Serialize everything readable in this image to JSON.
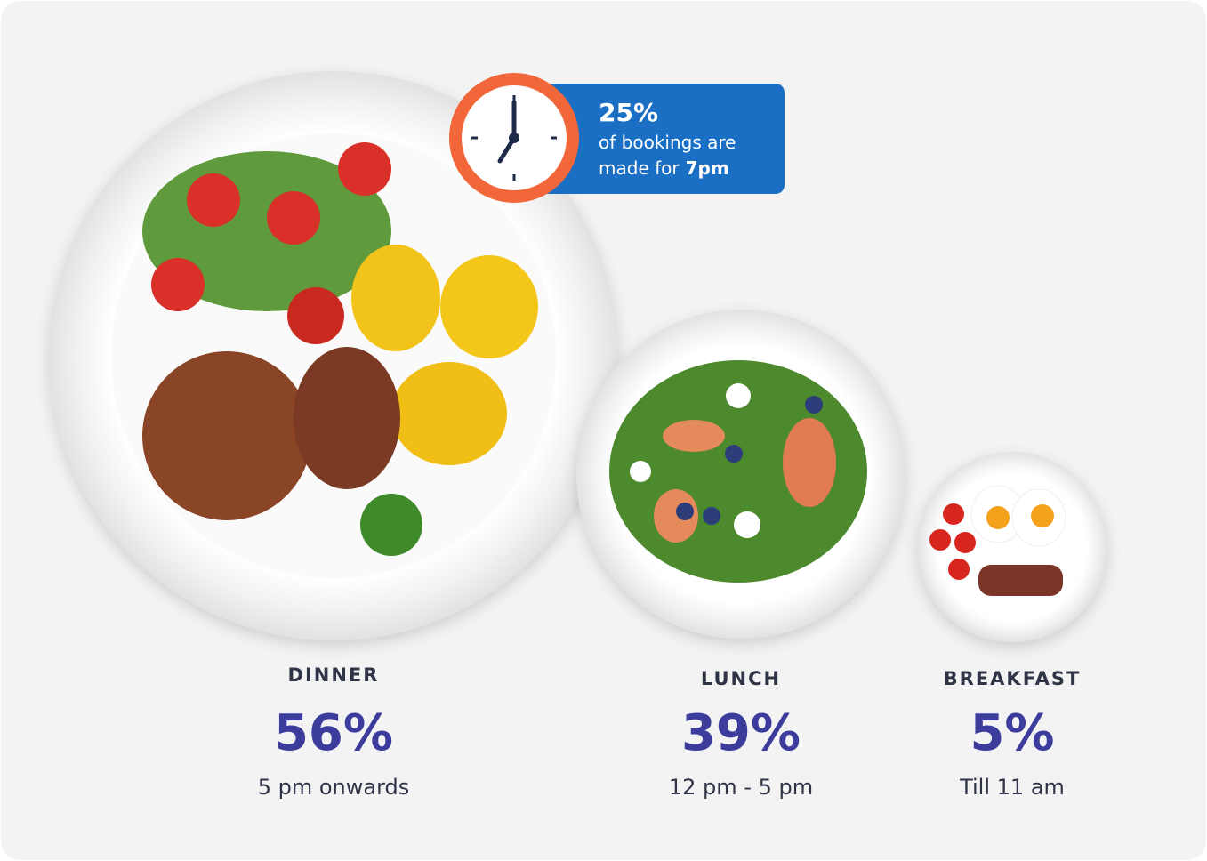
{
  "callout": {
    "value": "25%",
    "line1": "of bookings are",
    "line2": "made for",
    "highlight": "7pm"
  },
  "meals": [
    {
      "name": "DINNER",
      "share": "56%",
      "time": "5 pm onwards"
    },
    {
      "name": "LUNCH",
      "share": "39%",
      "time": "12 pm - 5 pm"
    },
    {
      "name": "BREAKFAST",
      "share": "5%",
      "time": "Till 11 am"
    }
  ]
}
